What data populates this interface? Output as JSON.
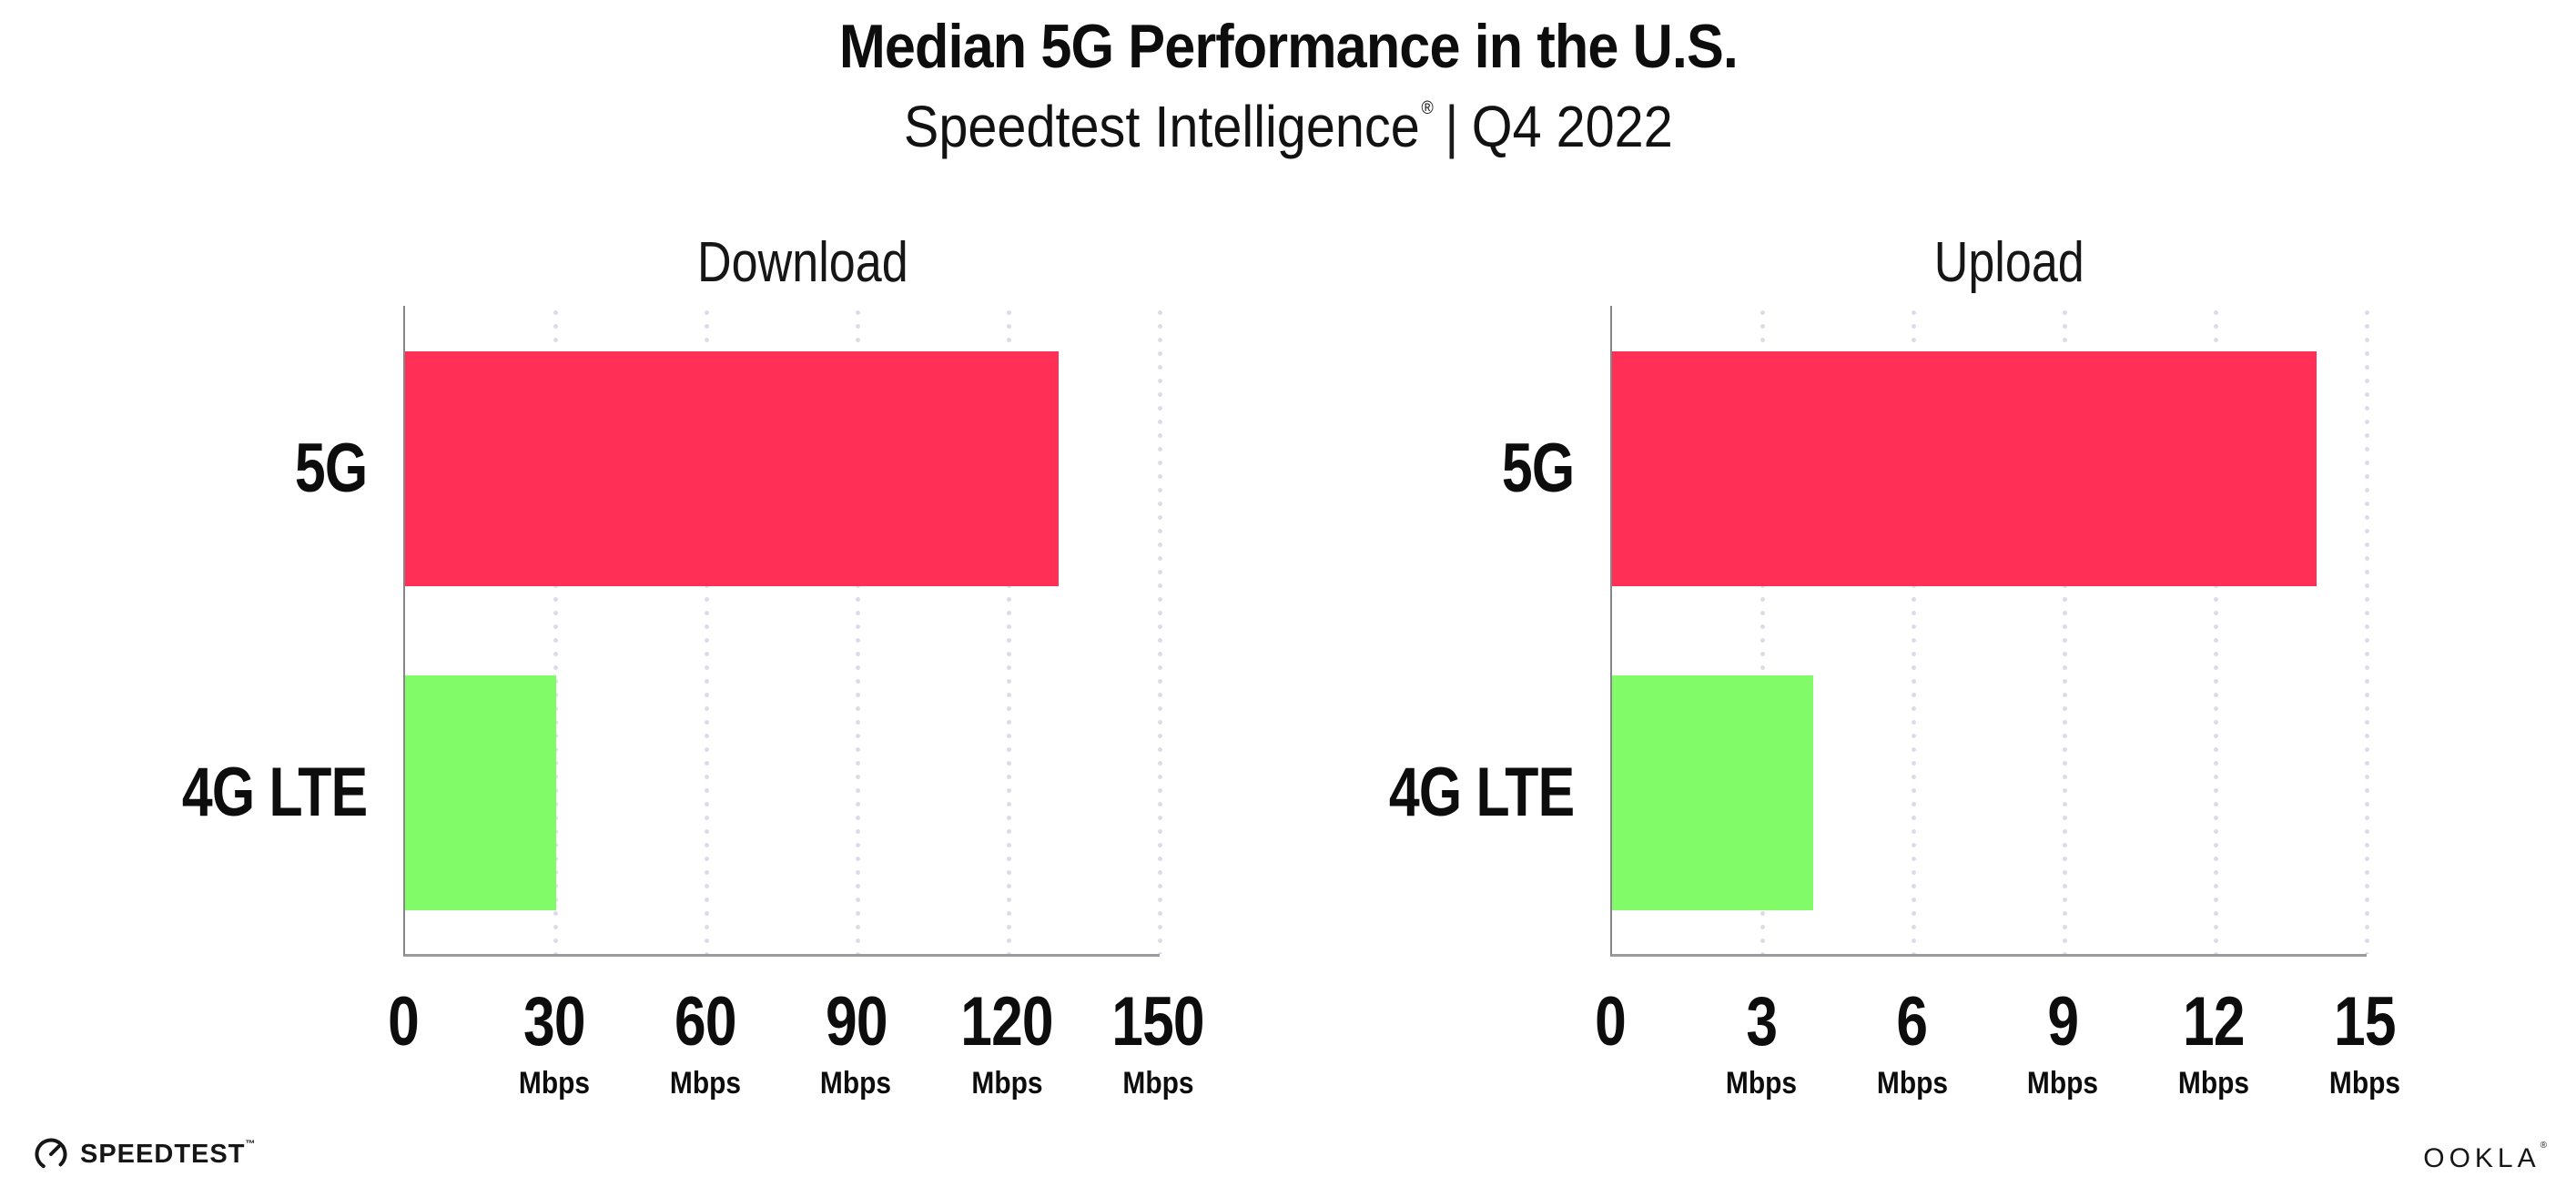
{
  "header": {
    "title": "Median 5G Performance in the U.S.",
    "subtitle_brand": "Speedtest Intelligence",
    "subtitle_reg": "®",
    "subtitle_sep": "|",
    "subtitle_period": "Q4 2022"
  },
  "footer": {
    "speedtest_label": "SPEEDTEST",
    "speedtest_tm": "™",
    "ookla_label": "OOKLA",
    "ookla_reg": "®"
  },
  "colors": {
    "bar_5g": "#ff2f56",
    "bar_4g_lte": "#82fb68",
    "axis": "#85858a",
    "gridline": "#dcdce8",
    "text": "#0d0d0d"
  },
  "chart_data": [
    {
      "type": "bar",
      "orientation": "horizontal",
      "title": "Download",
      "categories": [
        "5G",
        "4G LTE"
      ],
      "values": [
        130,
        30
      ],
      "unit": "Mbps",
      "xlim": [
        0,
        150
      ],
      "ticks": [
        0,
        30,
        60,
        90,
        120,
        150
      ],
      "grid": "vertical-dotted",
      "legend": "none",
      "bar_colors": [
        "#ff2f56",
        "#82fb68"
      ]
    },
    {
      "type": "bar",
      "orientation": "horizontal",
      "title": "Upload",
      "categories": [
        "5G",
        "4G LTE"
      ],
      "values": [
        14,
        4
      ],
      "unit": "Mbps",
      "xlim": [
        0,
        15
      ],
      "ticks": [
        0,
        3,
        6,
        9,
        12,
        15
      ],
      "grid": "vertical-dotted",
      "legend": "none",
      "bar_colors": [
        "#ff2f56",
        "#82fb68"
      ]
    }
  ]
}
